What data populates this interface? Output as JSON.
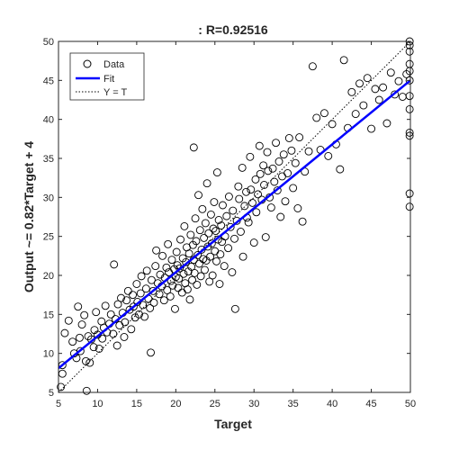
{
  "chart_data": {
    "type": "scatter",
    "title": ": R=0.92516",
    "xlabel": "Target",
    "ylabel": "Output ~= 0.82*Target + 4",
    "xlim": [
      5,
      50
    ],
    "ylim": [
      5,
      50
    ],
    "xticks": [
      5,
      10,
      15,
      20,
      25,
      30,
      35,
      40,
      45,
      50
    ],
    "yticks": [
      5,
      10,
      15,
      20,
      25,
      30,
      35,
      40,
      45,
      50
    ],
    "grid": false,
    "legend": {
      "position": "top-left",
      "entries": [
        "Data",
        "Fit",
        "Y = T"
      ]
    },
    "colors": {
      "data": "#000000",
      "fit": "#0000ff",
      "identity": "#000000"
    },
    "series": [
      {
        "name": "Data",
        "type": "scatter",
        "points": [
          [
            5.3,
            5.7
          ],
          [
            5.5,
            7.4
          ],
          [
            5.5,
            8.5
          ],
          [
            5.8,
            12.6
          ],
          [
            6.3,
            14.2
          ],
          [
            6.8,
            11.5
          ],
          [
            7.0,
            10.0
          ],
          [
            7.3,
            9.4
          ],
          [
            7.5,
            16.0
          ],
          [
            7.7,
            12.0
          ],
          [
            7.8,
            10.3
          ],
          [
            8.0,
            13.7
          ],
          [
            8.3,
            14.9
          ],
          [
            8.5,
            9.0
          ],
          [
            8.6,
            5.2
          ],
          [
            8.8,
            12.2
          ],
          [
            9.0,
            8.8
          ],
          [
            9.2,
            11.8
          ],
          [
            9.5,
            10.8
          ],
          [
            9.6,
            13.0
          ],
          [
            9.8,
            15.3
          ],
          [
            10.0,
            12.4
          ],
          [
            10.2,
            10.6
          ],
          [
            10.5,
            14.1
          ],
          [
            10.6,
            11.9
          ],
          [
            10.8,
            13.3
          ],
          [
            11.0,
            16.1
          ],
          [
            11.2,
            12.7
          ],
          [
            11.5,
            13.8
          ],
          [
            11.7,
            15.0
          ],
          [
            12.0,
            12.5
          ],
          [
            12.1,
            21.4
          ],
          [
            12.3,
            14.4
          ],
          [
            12.5,
            11.0
          ],
          [
            12.6,
            16.3
          ],
          [
            12.8,
            13.6
          ],
          [
            13.0,
            17.1
          ],
          [
            13.2,
            15.2
          ],
          [
            13.4,
            12.1
          ],
          [
            13.5,
            14.0
          ],
          [
            13.7,
            16.8
          ],
          [
            13.9,
            18.0
          ],
          [
            14.1,
            15.6
          ],
          [
            14.3,
            13.1
          ],
          [
            14.5,
            17.5
          ],
          [
            14.6,
            16.0
          ],
          [
            14.8,
            14.6
          ],
          [
            15.0,
            18.9
          ],
          [
            15.1,
            16.6
          ],
          [
            15.3,
            15.0
          ],
          [
            15.5,
            17.7
          ],
          [
            15.6,
            19.9
          ],
          [
            15.8,
            16.2
          ],
          [
            16.0,
            14.7
          ],
          [
            16.2,
            18.3
          ],
          [
            16.3,
            20.6
          ],
          [
            16.5,
            17.0
          ],
          [
            16.7,
            15.8
          ],
          [
            16.8,
            10.1
          ],
          [
            16.9,
            19.4
          ],
          [
            17.1,
            18.0
          ],
          [
            17.2,
            16.5
          ],
          [
            17.4,
            21.2
          ],
          [
            17.5,
            23.2
          ],
          [
            17.7,
            19.0
          ],
          [
            17.9,
            17.6
          ],
          [
            18.0,
            20.1
          ],
          [
            18.2,
            18.6
          ],
          [
            18.3,
            22.5
          ],
          [
            18.5,
            16.8
          ],
          [
            18.6,
            19.7
          ],
          [
            18.8,
            21.0
          ],
          [
            18.9,
            18.1
          ],
          [
            19.0,
            24.0
          ],
          [
            19.1,
            20.4
          ],
          [
            19.3,
            17.3
          ],
          [
            19.4,
            19.3
          ],
          [
            19.5,
            22.0
          ],
          [
            19.6,
            18.7
          ],
          [
            19.8,
            20.8
          ],
          [
            19.9,
            15.7
          ],
          [
            20.0,
            19.8
          ],
          [
            20.1,
            23.0
          ],
          [
            20.2,
            21.3
          ],
          [
            20.3,
            18.4
          ],
          [
            20.4,
            19.6
          ],
          [
            20.5,
            20.9
          ],
          [
            20.6,
            24.6
          ],
          [
            20.8,
            17.8
          ],
          [
            20.9,
            22.2
          ],
          [
            21.0,
            20.2
          ],
          [
            21.1,
            26.3
          ],
          [
            21.2,
            19.0
          ],
          [
            21.3,
            21.7
          ],
          [
            21.4,
            23.6
          ],
          [
            21.5,
            18.2
          ],
          [
            21.6,
            20.5
          ],
          [
            21.7,
            22.8
          ],
          [
            21.8,
            16.9
          ],
          [
            21.9,
            25.2
          ],
          [
            22.0,
            21.1
          ],
          [
            22.1,
            19.4
          ],
          [
            22.2,
            23.9
          ],
          [
            22.3,
            36.4
          ],
          [
            22.3,
            22.0
          ],
          [
            22.4,
            20.3
          ],
          [
            22.5,
            27.3
          ],
          [
            22.6,
            24.4
          ],
          [
            22.7,
            18.8
          ],
          [
            22.8,
            22.6
          ],
          [
            22.9,
            30.3
          ],
          [
            23.0,
            21.5
          ],
          [
            23.1,
            25.8
          ],
          [
            23.2,
            19.9
          ],
          [
            23.3,
            23.3
          ],
          [
            23.4,
            28.5
          ],
          [
            23.5,
            22.1
          ],
          [
            23.6,
            24.8
          ],
          [
            23.7,
            20.7
          ],
          [
            23.8,
            26.7
          ],
          [
            23.9,
            21.9
          ],
          [
            24.0,
            31.8
          ],
          [
            24.1,
            23.7
          ],
          [
            24.2,
            25.4
          ],
          [
            24.3,
            19.2
          ],
          [
            24.4,
            22.4
          ],
          [
            24.5,
            27.8
          ],
          [
            24.6,
            24.1
          ],
          [
            24.7,
            20.0
          ],
          [
            24.8,
            26.0
          ],
          [
            24.9,
            29.4
          ],
          [
            25.0,
            23.1
          ],
          [
            25.1,
            25.7
          ],
          [
            25.2,
            21.8
          ],
          [
            25.3,
            33.2
          ],
          [
            25.4,
            24.6
          ],
          [
            25.5,
            27.1
          ],
          [
            25.6,
            18.9
          ],
          [
            25.7,
            22.7
          ],
          [
            25.8,
            26.4
          ],
          [
            25.9,
            24.3
          ],
          [
            26.0,
            29.0
          ],
          [
            26.2,
            21.2
          ],
          [
            26.3,
            25.0
          ],
          [
            26.5,
            27.6
          ],
          [
            26.7,
            23.5
          ],
          [
            26.8,
            30.1
          ],
          [
            27.0,
            26.2
          ],
          [
            27.2,
            20.4
          ],
          [
            27.3,
            28.3
          ],
          [
            27.5,
            24.7
          ],
          [
            27.6,
            15.7
          ],
          [
            27.8,
            27.0
          ],
          [
            28.0,
            31.4
          ],
          [
            28.1,
            29.8
          ],
          [
            28.3,
            25.6
          ],
          [
            28.5,
            33.8
          ],
          [
            28.6,
            22.4
          ],
          [
            28.8,
            28.9
          ],
          [
            29.0,
            30.7
          ],
          [
            29.1,
            27.4
          ],
          [
            29.3,
            26.8
          ],
          [
            29.5,
            35.2
          ],
          [
            29.6,
            31.0
          ],
          [
            29.8,
            29.3
          ],
          [
            30.0,
            24.2
          ],
          [
            30.2,
            32.3
          ],
          [
            30.3,
            28.1
          ],
          [
            30.5,
            30.4
          ],
          [
            30.7,
            36.6
          ],
          [
            30.8,
            33.0
          ],
          [
            31.0,
            29.7
          ],
          [
            31.2,
            34.1
          ],
          [
            31.3,
            31.6
          ],
          [
            31.5,
            24.9
          ],
          [
            31.7,
            35.8
          ],
          [
            31.8,
            33.4
          ],
          [
            32.0,
            30.0
          ],
          [
            32.2,
            28.7
          ],
          [
            32.4,
            33.7
          ],
          [
            32.6,
            32.0
          ],
          [
            32.8,
            37.0
          ],
          [
            33.0,
            30.9
          ],
          [
            33.2,
            34.6
          ],
          [
            33.4,
            27.5
          ],
          [
            33.6,
            32.7
          ],
          [
            33.8,
            35.5
          ],
          [
            34.0,
            29.5
          ],
          [
            34.3,
            33.1
          ],
          [
            34.5,
            37.6
          ],
          [
            34.8,
            36.0
          ],
          [
            35.0,
            31.2
          ],
          [
            35.3,
            34.4
          ],
          [
            35.6,
            28.6
          ],
          [
            35.8,
            37.7
          ],
          [
            36.2,
            26.9
          ],
          [
            36.5,
            33.3
          ],
          [
            37.0,
            35.9
          ],
          [
            37.5,
            46.8
          ],
          [
            38.0,
            40.2
          ],
          [
            38.5,
            36.1
          ],
          [
            39.0,
            40.8
          ],
          [
            39.5,
            35.3
          ],
          [
            40.0,
            39.4
          ],
          [
            40.5,
            36.8
          ],
          [
            41.0,
            33.6
          ],
          [
            41.5,
            47.6
          ],
          [
            42.0,
            38.9
          ],
          [
            42.5,
            43.5
          ],
          [
            43.0,
            40.7
          ],
          [
            43.5,
            44.6
          ],
          [
            44.0,
            41.8
          ],
          [
            44.5,
            45.3
          ],
          [
            45.0,
            38.8
          ],
          [
            45.5,
            43.9
          ],
          [
            46.0,
            42.5
          ],
          [
            46.5,
            44.1
          ],
          [
            47.0,
            39.5
          ],
          [
            47.5,
            46.0
          ],
          [
            48.0,
            43.2
          ],
          [
            48.5,
            44.9
          ],
          [
            49.0,
            42.9
          ],
          [
            49.5,
            45.8
          ],
          [
            49.9,
            50.0
          ],
          [
            49.9,
            48.7
          ],
          [
            49.9,
            47.1
          ],
          [
            49.9,
            46.2
          ],
          [
            49.9,
            45.0
          ],
          [
            49.9,
            43.0
          ],
          [
            49.9,
            41.3
          ],
          [
            49.9,
            38.3
          ],
          [
            49.9,
            37.9
          ],
          [
            49.9,
            30.5
          ],
          [
            49.9,
            28.8
          ],
          [
            49.9,
            49.5
          ]
        ]
      },
      {
        "name": "Fit",
        "type": "line",
        "x": [
          5,
          50
        ],
        "y": [
          8.1,
          45.0
        ]
      },
      {
        "name": "Y = T",
        "type": "line",
        "x": [
          5,
          50
        ],
        "y": [
          5,
          50
        ]
      }
    ]
  }
}
